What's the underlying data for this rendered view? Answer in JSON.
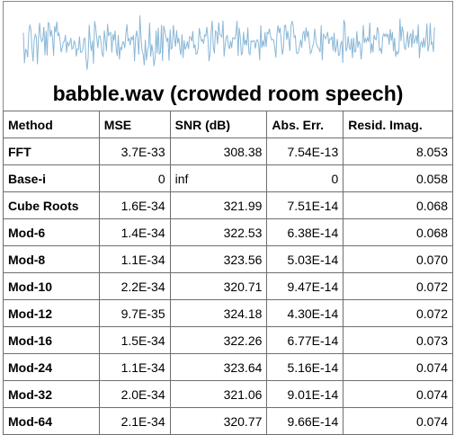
{
  "title": "babble.wav (crowded room speech)",
  "waveform": {
    "color": "#8ab8d8",
    "description_icon": "waveform-icon"
  },
  "table": {
    "headers": [
      "Method",
      "MSE",
      "SNR (dB)",
      "Abs. Err.",
      "Resid. Imag."
    ],
    "rows": [
      [
        "FFT",
        "3.7E-33",
        "308.38",
        "7.54E-13",
        "8.053"
      ],
      [
        "Base-i",
        "0",
        "inf",
        "0",
        "0.058"
      ],
      [
        "Cube Roots",
        "1.6E-34",
        "321.99",
        "7.51E-14",
        "0.068"
      ],
      [
        "Mod-6",
        "1.4E-34",
        "322.53",
        "6.38E-14",
        "0.068"
      ],
      [
        "Mod-8",
        "1.1E-34",
        "323.56",
        "5.03E-14",
        "0.070"
      ],
      [
        "Mod-10",
        "2.2E-34",
        "320.71",
        "9.47E-14",
        "0.072"
      ],
      [
        "Mod-12",
        "9.7E-35",
        "324.18",
        "4.30E-14",
        "0.072"
      ],
      [
        "Mod-16",
        "1.5E-34",
        "322.26",
        "6.77E-14",
        "0.073"
      ],
      [
        "Mod-24",
        "1.1E-34",
        "323.64",
        "5.16E-14",
        "0.074"
      ],
      [
        "Mod-32",
        "2.0E-34",
        "321.06",
        "9.01E-14",
        "0.074"
      ],
      [
        "Mod-64",
        "2.1E-34",
        "320.77",
        "9.66E-14",
        "0.074"
      ]
    ]
  }
}
